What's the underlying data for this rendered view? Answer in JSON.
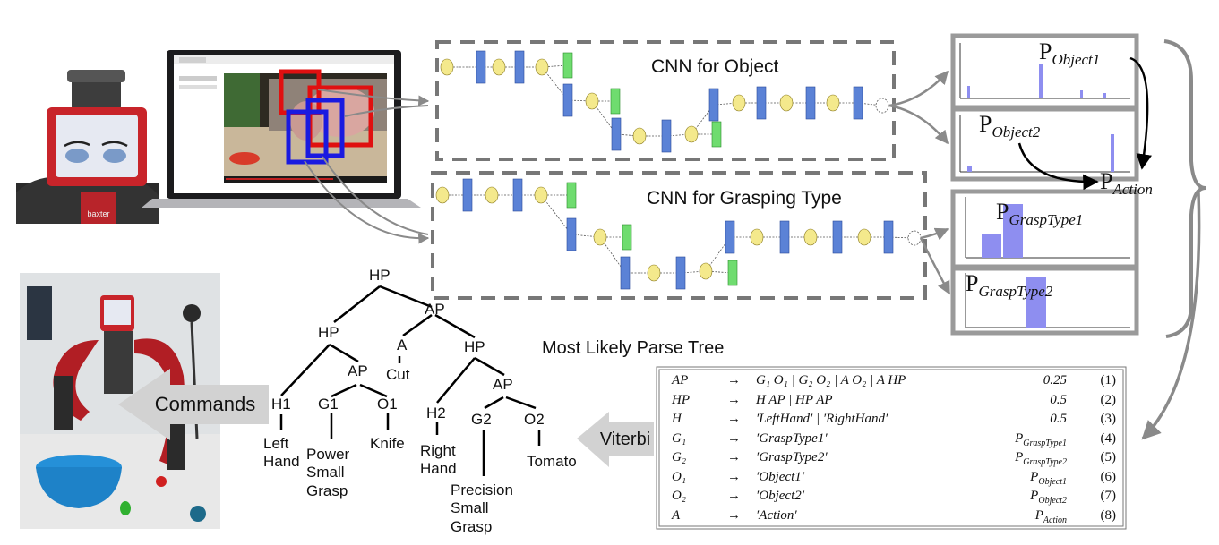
{
  "cnn_object": {
    "title": "CNN for Object"
  },
  "cnn_grasp": {
    "title": "CNN for Grasping Type"
  },
  "robot": {
    "brand": "baxter"
  },
  "probs": {
    "p_object1": {
      "main": "P",
      "sub": "Object1"
    },
    "p_object2": {
      "main": "P",
      "sub": "Object2"
    },
    "p_action": {
      "main": "P",
      "sub": "Action"
    },
    "p_grasp1": {
      "main": "P",
      "sub": "GraspType1"
    },
    "p_grasp2": {
      "main": "P",
      "sub": "GraspType2"
    }
  },
  "parse_tree": {
    "title": "Most Likely Parse Tree",
    "nodes": {
      "hp_root": "HP",
      "ap_top": "AP",
      "hp_left": "HP",
      "a": "A",
      "hp_right": "HP",
      "cut": "Cut",
      "ap_left": "AP",
      "ap_right": "AP",
      "h1": "H1",
      "g1": "G1",
      "o1": "O1",
      "h2": "H2",
      "g2": "G2",
      "o2": "O2",
      "left_hand": "Left\nHand",
      "power_grasp": "Power\nSmall\nGrasp",
      "knife": "Knife",
      "right_hand": "Right\nHand",
      "precision_grasp": "Precision\nSmall\nGrasp",
      "tomato": "Tomato"
    }
  },
  "arrows": {
    "commands": "Commands",
    "viterbi": "Viterbi"
  },
  "grammar": [
    {
      "lhs": "AP",
      "arrow": "→",
      "rhs": "G₁ O₁ | G₂ O₂ | A O₂ | A HP",
      "prob": "0.25",
      "num": "(1)"
    },
    {
      "lhs": "HP",
      "arrow": "→",
      "rhs": "H AP | HP AP",
      "prob": "0.5",
      "num": "(2)"
    },
    {
      "lhs": "H",
      "arrow": "→",
      "rhs": "′LeftHand′ | ′RightHand′",
      "prob": "0.5",
      "num": "(3)"
    },
    {
      "lhs": "G₁",
      "arrow": "→",
      "rhs": "′GraspType1′",
      "prob": "P",
      "prob_sub": "GraspType1",
      "num": "(4)"
    },
    {
      "lhs": "G₂",
      "arrow": "→",
      "rhs": "′GraspType2′",
      "prob": "P",
      "prob_sub": "GraspType2",
      "num": "(5)"
    },
    {
      "lhs": "O₁",
      "arrow": "→",
      "rhs": "′Object1′",
      "prob": "P",
      "prob_sub": "Object1",
      "num": "(6)"
    },
    {
      "lhs": "O₂",
      "arrow": "→",
      "rhs": "′Object2′",
      "prob": "P",
      "prob_sub": "Object2",
      "num": "(7)"
    },
    {
      "lhs": "A",
      "arrow": "→",
      "rhs": "′Action′",
      "prob": "P",
      "prob_sub": "Action",
      "num": "(8)"
    }
  ],
  "colors": {
    "conv_node": "#5b82d6",
    "pool_node": "#f4e98c",
    "fc_node": "#6fdc6f",
    "dash_border": "#777777",
    "bbox_red": "#e01010",
    "bbox_blue": "#1a1ae0",
    "hist_bar": "#8e8ef0",
    "arrow_fill": "#d2d2d2"
  }
}
